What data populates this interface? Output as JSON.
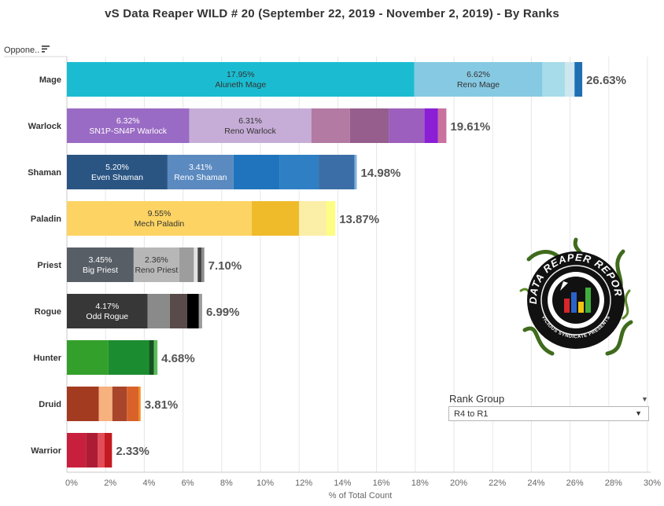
{
  "title": "vS Data Reaper WILD # 20 (September 22, 2019 - November 2, 2019) - By Ranks",
  "column_header": "Oppone..",
  "legend": {
    "title": "Rank Group",
    "selected": "R4 to R1"
  },
  "logo": {
    "text_top": "DATA REAPER REPORT",
    "text_bottom": "VICIOUS SYNDICATE PRESENTS"
  },
  "chart_data": {
    "type": "bar",
    "orientation": "horizontal",
    "stacked": true,
    "xlabel": "% of Total Count",
    "xlim": [
      0,
      30
    ],
    "xticks": [
      "0%",
      "2%",
      "4%",
      "6%",
      "8%",
      "10%",
      "12%",
      "14%",
      "16%",
      "18%",
      "20%",
      "22%",
      "24%",
      "26%",
      "28%",
      "30%"
    ],
    "grid": true,
    "rows": [
      {
        "label": "Mage",
        "total_label": "26.63%",
        "total": 26.63,
        "segments": [
          {
            "value": 17.95,
            "color": "#1bbcd1",
            "pct": "17.95%",
            "name": "Aluneth Mage"
          },
          {
            "value": 6.62,
            "color": "#86c9e2",
            "pct": "6.62%",
            "name": "Reno Mage"
          },
          {
            "value": 1.16,
            "color": "#a7dcea",
            "pct": "",
            "name": ""
          },
          {
            "value": 0.5,
            "color": "#cde7ef",
            "pct": "",
            "name": ""
          },
          {
            "value": 0.4,
            "color": "#1f6fb2",
            "pct": "",
            "name": ""
          }
        ]
      },
      {
        "label": "Warlock",
        "total_label": "19.61%",
        "total": 19.61,
        "segments": [
          {
            "value": 6.32,
            "color": "#9a6bc4",
            "pct": "6.32%",
            "name": "SN1P-SN4P Warlock"
          },
          {
            "value": 6.31,
            "color": "#c6add7",
            "pct": "6.31%",
            "name": "Reno Warlock"
          },
          {
            "value": 2.0,
            "color": "#b37aa3",
            "pct": "",
            "name": ""
          },
          {
            "value": 2.0,
            "color": "#955e8d",
            "pct": "",
            "name": ""
          },
          {
            "value": 1.85,
            "color": "#9c5fbd",
            "pct": "",
            "name": ""
          },
          {
            "value": 0.7,
            "color": "#8a1fd6",
            "pct": "",
            "name": ""
          },
          {
            "value": 0.43,
            "color": "#c9729e",
            "pct": "",
            "name": ""
          }
        ]
      },
      {
        "label": "Shaman",
        "total_label": "14.98%",
        "total": 14.98,
        "segments": [
          {
            "value": 5.2,
            "color": "#2a5583",
            "pct": "5.20%",
            "name": "Even Shaman"
          },
          {
            "value": 3.41,
            "color": "#5b8ac0",
            "pct": "3.41%",
            "name": "Reno Shaman"
          },
          {
            "value": 2.4,
            "color": "#1f74bd",
            "pct": "",
            "name": ""
          },
          {
            "value": 2.0,
            "color": "#2e7fc4",
            "pct": "",
            "name": ""
          },
          {
            "value": 1.85,
            "color": "#3b6ea6",
            "pct": "",
            "name": ""
          },
          {
            "value": 0.12,
            "color": "#7eb3df",
            "pct": "",
            "name": ""
          }
        ]
      },
      {
        "label": "Paladin",
        "total_label": "13.87%",
        "total": 13.87,
        "segments": [
          {
            "value": 9.55,
            "color": "#fdd463",
            "pct": "9.55%",
            "name": "Mech Paladin"
          },
          {
            "value": 2.45,
            "color": "#f0bb2b",
            "pct": "",
            "name": ""
          },
          {
            "value": 1.4,
            "color": "#fbeea6",
            "pct": "",
            "name": ""
          },
          {
            "value": 0.47,
            "color": "#fdfd84",
            "pct": "",
            "name": ""
          }
        ]
      },
      {
        "label": "Priest",
        "total_label": "7.10%",
        "total": 7.1,
        "segments": [
          {
            "value": 3.45,
            "color": "#575e66",
            "pct": "3.45%",
            "name": "Big Priest"
          },
          {
            "value": 2.36,
            "color": "#b7b7b7",
            "pct": "2.36%",
            "name": "Reno Priest"
          },
          {
            "value": 0.75,
            "color": "#9d9d9d",
            "pct": "",
            "name": ""
          },
          {
            "value": 0.2,
            "color": "#e3e3e3",
            "pct": "",
            "name": ""
          },
          {
            "value": 0.2,
            "color": "#444444",
            "pct": "",
            "name": ""
          },
          {
            "value": 0.14,
            "color": "#8b8b8b",
            "pct": "",
            "name": ""
          }
        ]
      },
      {
        "label": "Rogue",
        "total_label": "6.99%",
        "total": 6.99,
        "segments": [
          {
            "value": 4.17,
            "color": "#373737",
            "pct": "4.17%",
            "name": "Odd Rogue"
          },
          {
            "value": 1.15,
            "color": "#8a8a8a",
            "pct": "",
            "name": ""
          },
          {
            "value": 0.9,
            "color": "#5a4b4b",
            "pct": "",
            "name": ""
          },
          {
            "value": 0.6,
            "color": "#000000",
            "pct": "",
            "name": ""
          },
          {
            "value": 0.17,
            "color": "#9d9d9d",
            "pct": "",
            "name": ""
          }
        ]
      },
      {
        "label": "Hunter",
        "total_label": "4.68%",
        "total": 4.68,
        "segments": [
          {
            "value": 2.15,
            "color": "#33a02c",
            "pct": "",
            "name": ""
          },
          {
            "value": 2.1,
            "color": "#1c8c30",
            "pct": "",
            "name": ""
          },
          {
            "value": 0.25,
            "color": "#14541f",
            "pct": "",
            "name": ""
          },
          {
            "value": 0.18,
            "color": "#5cbc5c",
            "pct": "",
            "name": ""
          }
        ]
      },
      {
        "label": "Druid",
        "total_label": "3.81%",
        "total": 3.81,
        "segments": [
          {
            "value": 1.65,
            "color": "#a33b20",
            "pct": "",
            "name": ""
          },
          {
            "value": 0.7,
            "color": "#f6b17e",
            "pct": "",
            "name": ""
          },
          {
            "value": 0.75,
            "color": "#a8452a",
            "pct": "",
            "name": ""
          },
          {
            "value": 0.6,
            "color": "#d8622a",
            "pct": "",
            "name": ""
          },
          {
            "value": 0.11,
            "color": "#f28c24",
            "pct": "",
            "name": ""
          }
        ]
      },
      {
        "label": "Warrior",
        "total_label": "2.33%",
        "total": 2.33,
        "segments": [
          {
            "value": 1.0,
            "color": "#c8203c",
            "pct": "",
            "name": ""
          },
          {
            "value": 0.6,
            "color": "#ad1c35",
            "pct": "",
            "name": ""
          },
          {
            "value": 0.35,
            "color": "#e24d58",
            "pct": "",
            "name": ""
          },
          {
            "value": 0.38,
            "color": "#c41a22",
            "pct": "",
            "name": ""
          }
        ]
      }
    ]
  }
}
